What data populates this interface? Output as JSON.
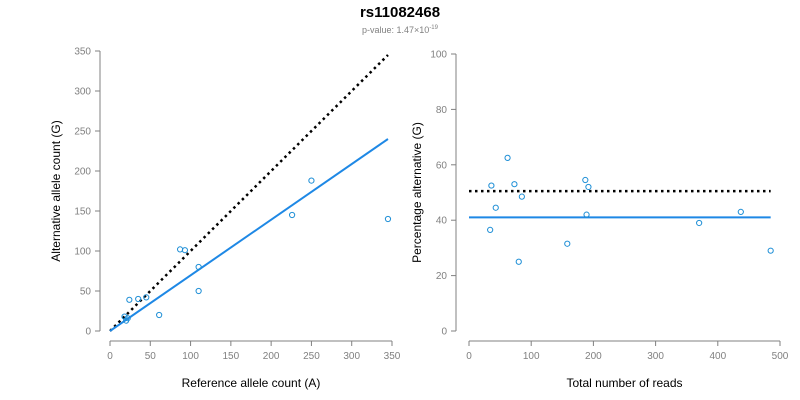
{
  "title": "rs11082468",
  "subtitle": {
    "prefix": "p-value: 1.47×10",
    "exponent": "-19"
  },
  "colors": {
    "points": "#1f8fd6",
    "fit_line": "#1e88e5",
    "expected_line": "#000000",
    "axis": "#808080"
  },
  "chart_data": [
    {
      "type": "scatter",
      "xlabel": "Reference allele count (A)",
      "ylabel": "Alternative allele count (G)",
      "xlim": [
        0,
        350
      ],
      "ylim": [
        0,
        350
      ],
      "xticks": [
        0,
        50,
        100,
        150,
        200,
        250,
        300,
        350
      ],
      "yticks": [
        0,
        50,
        100,
        150,
        200,
        250,
        300,
        350
      ],
      "grid": false,
      "points": [
        {
          "x": 18,
          "y": 18
        },
        {
          "x": 20,
          "y": 13
        },
        {
          "x": 22,
          "y": 16
        },
        {
          "x": 24,
          "y": 39
        },
        {
          "x": 35,
          "y": 40
        },
        {
          "x": 45,
          "y": 42
        },
        {
          "x": 61,
          "y": 20
        },
        {
          "x": 87,
          "y": 102
        },
        {
          "x": 93,
          "y": 101
        },
        {
          "x": 110,
          "y": 80
        },
        {
          "x": 110,
          "y": 50
        },
        {
          "x": 226,
          "y": 145
        },
        {
          "x": 250,
          "y": 188
        },
        {
          "x": 345,
          "y": 140
        }
      ],
      "fit_line": {
        "x": [
          0,
          345
        ],
        "y": [
          0,
          240
        ],
        "style": "solid"
      },
      "expected_line": {
        "x": [
          0,
          345
        ],
        "y": [
          0,
          345
        ],
        "style": "dotted"
      }
    },
    {
      "type": "scatter",
      "xlabel": "Total number of reads",
      "ylabel": "Percentage alternative (G)",
      "xlim": [
        0,
        500
      ],
      "ylim": [
        0,
        100
      ],
      "xticks": [
        0,
        100,
        200,
        300,
        400,
        500
      ],
      "yticks": [
        0,
        20,
        40,
        60,
        80,
        100
      ],
      "grid": false,
      "points": [
        {
          "x": 34,
          "y": 36.5
        },
        {
          "x": 36,
          "y": 52.5
        },
        {
          "x": 43,
          "y": 44.5
        },
        {
          "x": 62,
          "y": 62.5
        },
        {
          "x": 73,
          "y": 53
        },
        {
          "x": 80,
          "y": 25
        },
        {
          "x": 85,
          "y": 48.5
        },
        {
          "x": 158,
          "y": 31.5
        },
        {
          "x": 187,
          "y": 54.5
        },
        {
          "x": 189,
          "y": 42
        },
        {
          "x": 192,
          "y": 52
        },
        {
          "x": 370,
          "y": 39
        },
        {
          "x": 437,
          "y": 43
        },
        {
          "x": 485,
          "y": 29
        }
      ],
      "fit_line": {
        "x": [
          0,
          485
        ],
        "y": [
          41,
          41
        ],
        "style": "solid"
      },
      "expected_line": {
        "x": [
          0,
          485
        ],
        "y": [
          50.5,
          50.5
        ],
        "style": "dotted"
      }
    }
  ]
}
